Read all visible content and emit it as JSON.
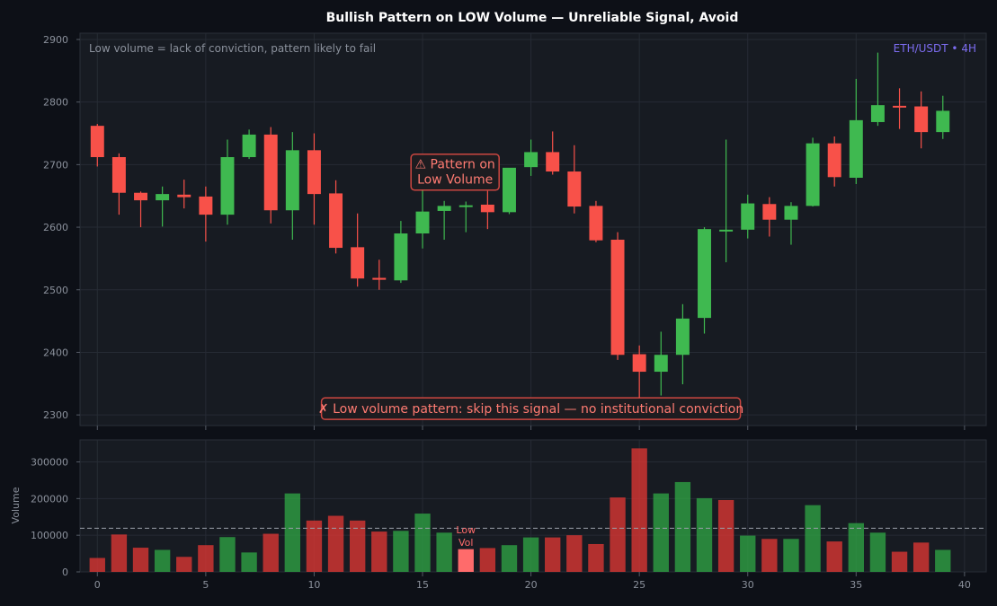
{
  "chart_data": [
    {
      "type": "candlestick",
      "title": "Bullish Pattern on LOW Volume — Unreliable Signal, Avoid",
      "subtitle": "Low volume = lack of conviction, pattern likely to fail",
      "symbol_label": "ETH/USDT • 4H",
      "xlim": [
        -0.8,
        41
      ],
      "ylim": [
        2283,
        2910
      ],
      "x_ticks": [
        0,
        5,
        10,
        15,
        20,
        25,
        30,
        35,
        40
      ],
      "y_ticks": [
        2300,
        2400,
        2500,
        2600,
        2700,
        2800,
        2900
      ],
      "grid": true,
      "up_color": "#3fb950",
      "down_color": "#f85149",
      "candles": [
        {
          "x": 0,
          "o": 2762,
          "h": 2765,
          "l": 2697,
          "c": 2712
        },
        {
          "x": 1,
          "o": 2712,
          "h": 2718,
          "l": 2620,
          "c": 2655
        },
        {
          "x": 2,
          "o": 2655,
          "h": 2657,
          "l": 2600,
          "c": 2643
        },
        {
          "x": 3,
          "o": 2643,
          "h": 2665,
          "l": 2601,
          "c": 2653
        },
        {
          "x": 4,
          "o": 2652,
          "h": 2676,
          "l": 2630,
          "c": 2648
        },
        {
          "x": 5,
          "o": 2649,
          "h": 2665,
          "l": 2577,
          "c": 2620
        },
        {
          "x": 6,
          "o": 2620,
          "h": 2740,
          "l": 2604,
          "c": 2712
        },
        {
          "x": 7,
          "o": 2712,
          "h": 2756,
          "l": 2709,
          "c": 2748
        },
        {
          "x": 8,
          "o": 2748,
          "h": 2760,
          "l": 2606,
          "c": 2627
        },
        {
          "x": 9,
          "o": 2627,
          "h": 2752,
          "l": 2580,
          "c": 2723
        },
        {
          "x": 10,
          "o": 2723,
          "h": 2750,
          "l": 2604,
          "c": 2653
        },
        {
          "x": 11,
          "o": 2654,
          "h": 2675,
          "l": 2558,
          "c": 2567
        },
        {
          "x": 12,
          "o": 2568,
          "h": 2622,
          "l": 2505,
          "c": 2518
        },
        {
          "x": 13,
          "o": 2519,
          "h": 2548,
          "l": 2500,
          "c": 2516
        },
        {
          "x": 14,
          "o": 2515,
          "h": 2610,
          "l": 2511,
          "c": 2590
        },
        {
          "x": 15,
          "o": 2590,
          "h": 2660,
          "l": 2566,
          "c": 2625
        },
        {
          "x": 16,
          "o": 2626,
          "h": 2642,
          "l": 2580,
          "c": 2634
        },
        {
          "x": 17,
          "o": 2633,
          "h": 2641,
          "l": 2592,
          "c": 2635
        },
        {
          "x": 18,
          "o": 2636,
          "h": 2658,
          "l": 2597,
          "c": 2624
        },
        {
          "x": 19,
          "o": 2624,
          "h": 2693,
          "l": 2621,
          "c": 2695
        },
        {
          "x": 20,
          "o": 2696,
          "h": 2740,
          "l": 2682,
          "c": 2720
        },
        {
          "x": 21,
          "o": 2720,
          "h": 2753,
          "l": 2684,
          "c": 2689
        },
        {
          "x": 22,
          "o": 2689,
          "h": 2731,
          "l": 2622,
          "c": 2633
        },
        {
          "x": 23,
          "o": 2634,
          "h": 2642,
          "l": 2576,
          "c": 2579
        },
        {
          "x": 24,
          "o": 2580,
          "h": 2592,
          "l": 2388,
          "c": 2396
        },
        {
          "x": 25,
          "o": 2397,
          "h": 2411,
          "l": 2325,
          "c": 2369
        },
        {
          "x": 26,
          "o": 2369,
          "h": 2433,
          "l": 2331,
          "c": 2396
        },
        {
          "x": 27,
          "o": 2396,
          "h": 2477,
          "l": 2349,
          "c": 2454
        },
        {
          "x": 28,
          "o": 2455,
          "h": 2600,
          "l": 2430,
          "c": 2597
        },
        {
          "x": 29,
          "o": 2596,
          "h": 2740,
          "l": 2544,
          "c": 2596
        },
        {
          "x": 30,
          "o": 2596,
          "h": 2652,
          "l": 2582,
          "c": 2638
        },
        {
          "x": 31,
          "o": 2637,
          "h": 2648,
          "l": 2585,
          "c": 2612
        },
        {
          "x": 32,
          "o": 2612,
          "h": 2640,
          "l": 2572,
          "c": 2634
        },
        {
          "x": 33,
          "o": 2634,
          "h": 2743,
          "l": 2633,
          "c": 2734
        },
        {
          "x": 34,
          "o": 2734,
          "h": 2745,
          "l": 2665,
          "c": 2680
        },
        {
          "x": 35,
          "o": 2679,
          "h": 2837,
          "l": 2669,
          "c": 2771
        },
        {
          "x": 36,
          "o": 2768,
          "h": 2879,
          "l": 2762,
          "c": 2795
        },
        {
          "x": 37,
          "o": 2794,
          "h": 2822,
          "l": 2757,
          "c": 2792
        },
        {
          "x": 38,
          "o": 2793,
          "h": 2817,
          "l": 2726,
          "c": 2752
        },
        {
          "x": 39,
          "o": 2752,
          "h": 2810,
          "l": 2741,
          "c": 2786
        }
      ],
      "annotations": [
        {
          "text_lines": [
            "⚠ Pattern on",
            "Low Volume"
          ],
          "x": 16.5,
          "y": 2688
        },
        {
          "text": "✗ Low volume pattern: skip this signal — no institutional conviction",
          "x": 20,
          "y": 2310
        }
      ]
    },
    {
      "type": "bar",
      "ylabel": "Volume",
      "xlim": [
        -0.8,
        41
      ],
      "ylim": [
        0,
        360000
      ],
      "x_ticks": [
        0,
        5,
        10,
        15,
        20,
        25,
        30,
        35,
        40
      ],
      "y_ticks": [
        0,
        100000,
        200000,
        300000
      ],
      "grid": true,
      "avg_line": 119000,
      "highlight_index": 17,
      "highlight_label_lines": [
        "Low",
        "Vol"
      ],
      "values": [
        38000,
        102000,
        66000,
        60000,
        41000,
        73000,
        95000,
        53000,
        104000,
        214000,
        140000,
        153000,
        140000,
        110000,
        112000,
        159000,
        107000,
        62000,
        65000,
        73000,
        94000,
        94000,
        100000,
        76000,
        203000,
        337000,
        214000,
        245000,
        201000,
        196000,
        99000,
        90000,
        90000,
        182000,
        83000,
        133000,
        107000,
        55000,
        80000,
        60000
      ],
      "colors": [
        "down",
        "down",
        "down",
        "up",
        "down",
        "down",
        "up",
        "up",
        "down",
        "up",
        "down",
        "down",
        "down",
        "down",
        "up",
        "up",
        "up",
        "highlight",
        "down",
        "up",
        "up",
        "down",
        "down",
        "down",
        "down",
        "down",
        "up",
        "up",
        "up",
        "down",
        "up",
        "down",
        "up",
        "up",
        "down",
        "up",
        "up",
        "down",
        "down",
        "up"
      ],
      "up_color": "#2ea043",
      "down_color": "#da3633",
      "highlight_color": "#ff6b6b"
    }
  ]
}
